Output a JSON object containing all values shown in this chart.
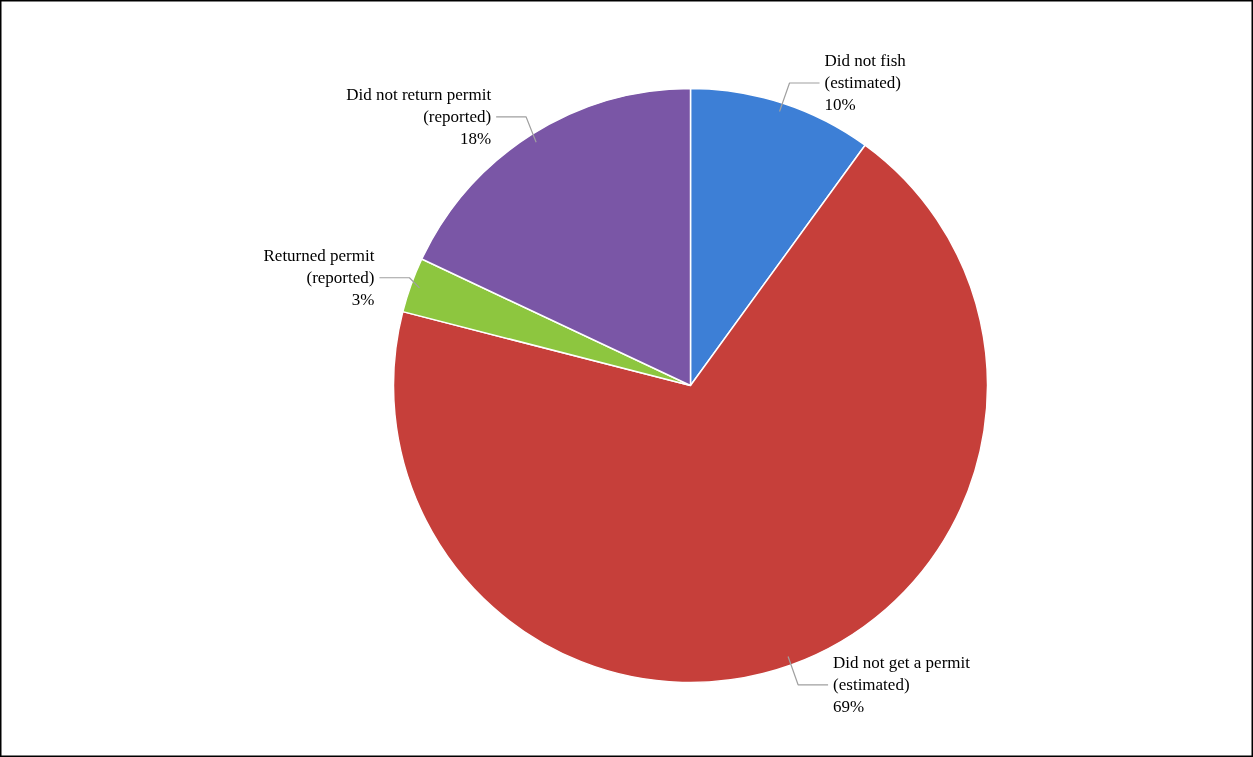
{
  "chart_data": {
    "type": "pie",
    "categories": [
      "Did not fish (estimated)",
      "Did not get a permit (estimated)",
      "Returned permit (reported)",
      "Did not return permit (reported)"
    ],
    "values": [
      10,
      69,
      3,
      18
    ],
    "colors": [
      "#3d7fd6",
      "#c63f3a",
      "#8dc63f",
      "#7a56a6"
    ],
    "value_labels": [
      "10%",
      "69%",
      "3%",
      "18%"
    ]
  }
}
